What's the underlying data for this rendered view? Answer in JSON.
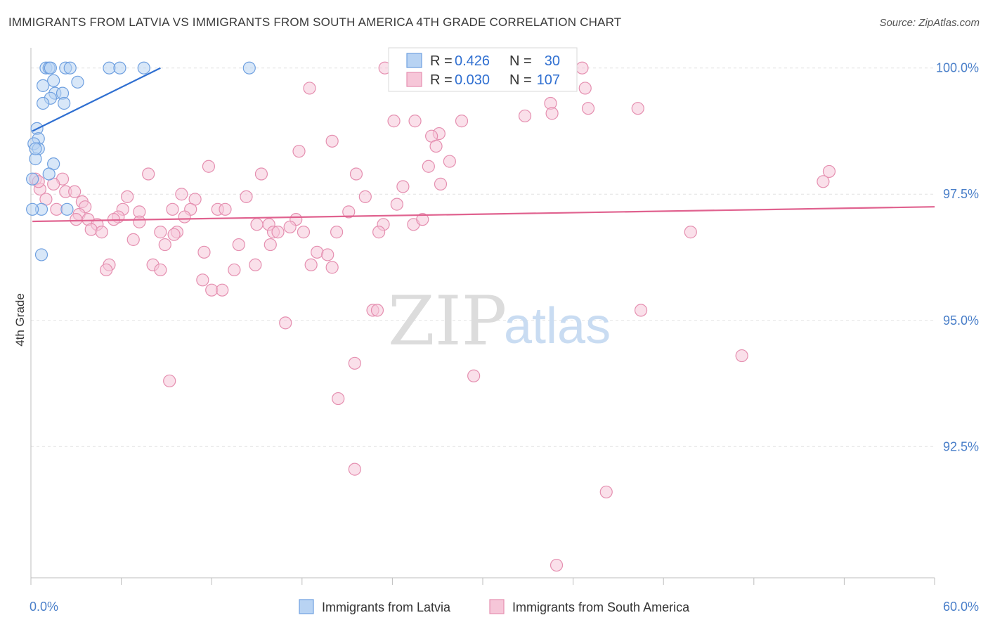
{
  "header": {
    "title": "IMMIGRANTS FROM LATVIA VS IMMIGRANTS FROM SOUTH AMERICA 4TH GRADE CORRELATION CHART",
    "source": "Source: ZipAtlas.com"
  },
  "watermark": {
    "zip": "ZIP",
    "atlas": "atlas"
  },
  "chart_data": {
    "type": "scatter",
    "title": "IMMIGRANTS FROM LATVIA VS IMMIGRANTS FROM SOUTH AMERICA 4TH GRADE CORRELATION CHART",
    "xlabel": "",
    "ylabel": "4th Grade",
    "xlim": [
      0,
      60
    ],
    "ylim": [
      89.9,
      100.4
    ],
    "x_tick_labels": [
      "0.0%",
      "60.0%"
    ],
    "y_ticks": [
      100.0,
      97.5,
      95.0,
      92.5
    ],
    "y_tick_labels": [
      "100.0%",
      "97.5%",
      "95.0%",
      "92.5%"
    ],
    "grid": true,
    "legend_position": "bottom-center",
    "stats_box": {
      "r_label": "R =",
      "n_label": "N =",
      "rows": [
        {
          "series": "Immigrants from Latvia",
          "r": "0.426",
          "n": "30"
        },
        {
          "series": "Immigrants from South America",
          "r": "0.030",
          "n": "107"
        }
      ]
    },
    "series": [
      {
        "name": "Immigrants from Latvia",
        "color": "#6fa0e0",
        "fill": "#b8d3f3",
        "trend": {
          "x": [
            0.1,
            8.6
          ],
          "y": [
            98.75,
            100.0
          ]
        },
        "points": [
          {
            "x": 1.0,
            "y": 100.0
          },
          {
            "x": 1.2,
            "y": 100.0
          },
          {
            "x": 1.3,
            "y": 100.0
          },
          {
            "x": 2.3,
            "y": 100.0
          },
          {
            "x": 2.6,
            "y": 100.0
          },
          {
            "x": 5.2,
            "y": 100.0
          },
          {
            "x": 5.9,
            "y": 100.0
          },
          {
            "x": 7.5,
            "y": 100.0
          },
          {
            "x": 14.5,
            "y": 100.0
          },
          {
            "x": 1.5,
            "y": 99.75
          },
          {
            "x": 3.1,
            "y": 99.72
          },
          {
            "x": 0.8,
            "y": 99.65
          },
          {
            "x": 1.6,
            "y": 99.5
          },
          {
            "x": 2.1,
            "y": 99.5
          },
          {
            "x": 1.3,
            "y": 99.4
          },
          {
            "x": 0.8,
            "y": 99.3
          },
          {
            "x": 2.2,
            "y": 99.3
          },
          {
            "x": 0.4,
            "y": 98.8
          },
          {
            "x": 0.5,
            "y": 98.6
          },
          {
            "x": 0.2,
            "y": 98.5
          },
          {
            "x": 0.5,
            "y": 98.4
          },
          {
            "x": 0.3,
            "y": 98.2
          },
          {
            "x": 1.5,
            "y": 98.1
          },
          {
            "x": 1.2,
            "y": 97.9
          },
          {
            "x": 0.1,
            "y": 97.8
          },
          {
            "x": 0.7,
            "y": 97.2
          },
          {
            "x": 2.4,
            "y": 97.2
          },
          {
            "x": 0.1,
            "y": 97.2
          },
          {
            "x": 0.7,
            "y": 96.3
          },
          {
            "x": 0.3,
            "y": 98.4
          }
        ]
      },
      {
        "name": "Immigrants from South America",
        "color": "#e58fb0",
        "fill": "#f6c6d8",
        "trend": {
          "x": [
            0.1,
            60.0
          ],
          "y": [
            96.96,
            97.25
          ]
        },
        "points": [
          {
            "x": 23.5,
            "y": 100.0
          },
          {
            "x": 36.6,
            "y": 100.0
          },
          {
            "x": 18.5,
            "y": 99.6
          },
          {
            "x": 36.8,
            "y": 99.6
          },
          {
            "x": 34.5,
            "y": 99.3
          },
          {
            "x": 37.0,
            "y": 99.2
          },
          {
            "x": 40.3,
            "y": 99.2
          },
          {
            "x": 32.8,
            "y": 99.05
          },
          {
            "x": 34.6,
            "y": 99.1
          },
          {
            "x": 24.1,
            "y": 98.95
          },
          {
            "x": 25.5,
            "y": 98.95
          },
          {
            "x": 28.6,
            "y": 98.95
          },
          {
            "x": 27.1,
            "y": 98.7
          },
          {
            "x": 26.6,
            "y": 98.65
          },
          {
            "x": 20.0,
            "y": 98.55
          },
          {
            "x": 26.9,
            "y": 98.45
          },
          {
            "x": 17.8,
            "y": 98.35
          },
          {
            "x": 27.8,
            "y": 98.15
          },
          {
            "x": 26.4,
            "y": 98.05
          },
          {
            "x": 11.8,
            "y": 98.05
          },
          {
            "x": 7.8,
            "y": 97.9
          },
          {
            "x": 15.3,
            "y": 97.9
          },
          {
            "x": 21.6,
            "y": 97.9
          },
          {
            "x": 53.0,
            "y": 97.95
          },
          {
            "x": 52.6,
            "y": 97.75
          },
          {
            "x": 0.3,
            "y": 97.8
          },
          {
            "x": 2.1,
            "y": 97.8
          },
          {
            "x": 1.5,
            "y": 97.7
          },
          {
            "x": 24.7,
            "y": 97.65
          },
          {
            "x": 27.2,
            "y": 97.7
          },
          {
            "x": 2.3,
            "y": 97.55
          },
          {
            "x": 2.9,
            "y": 97.55
          },
          {
            "x": 10.0,
            "y": 97.5
          },
          {
            "x": 6.4,
            "y": 97.45
          },
          {
            "x": 14.3,
            "y": 97.45
          },
          {
            "x": 22.2,
            "y": 97.45
          },
          {
            "x": 10.9,
            "y": 97.4
          },
          {
            "x": 3.4,
            "y": 97.35
          },
          {
            "x": 24.3,
            "y": 97.3
          },
          {
            "x": 3.6,
            "y": 97.25
          },
          {
            "x": 6.1,
            "y": 97.2
          },
          {
            "x": 9.4,
            "y": 97.2
          },
          {
            "x": 12.4,
            "y": 97.2
          },
          {
            "x": 12.9,
            "y": 97.2
          },
          {
            "x": 10.6,
            "y": 97.2
          },
          {
            "x": 1.7,
            "y": 97.2
          },
          {
            "x": 7.2,
            "y": 97.15
          },
          {
            "x": 21.1,
            "y": 97.15
          },
          {
            "x": 3.2,
            "y": 97.1
          },
          {
            "x": 5.8,
            "y": 97.05
          },
          {
            "x": 10.2,
            "y": 97.05
          },
          {
            "x": 3.8,
            "y": 97.0
          },
          {
            "x": 5.5,
            "y": 97.0
          },
          {
            "x": 17.6,
            "y": 97.0
          },
          {
            "x": 7.2,
            "y": 96.95
          },
          {
            "x": 15.0,
            "y": 96.9
          },
          {
            "x": 15.8,
            "y": 96.9
          },
          {
            "x": 25.4,
            "y": 96.9
          },
          {
            "x": 23.4,
            "y": 96.9
          },
          {
            "x": 4.4,
            "y": 96.9
          },
          {
            "x": 17.2,
            "y": 96.85
          },
          {
            "x": 4.0,
            "y": 96.8
          },
          {
            "x": 4.7,
            "y": 96.75
          },
          {
            "x": 8.6,
            "y": 96.75
          },
          {
            "x": 9.7,
            "y": 96.75
          },
          {
            "x": 16.1,
            "y": 96.75
          },
          {
            "x": 16.4,
            "y": 96.75
          },
          {
            "x": 18.1,
            "y": 96.75
          },
          {
            "x": 20.3,
            "y": 96.75
          },
          {
            "x": 23.1,
            "y": 96.75
          },
          {
            "x": 43.8,
            "y": 96.75
          },
          {
            "x": 6.8,
            "y": 96.6
          },
          {
            "x": 8.9,
            "y": 96.5
          },
          {
            "x": 13.8,
            "y": 96.5
          },
          {
            "x": 15.9,
            "y": 96.5
          },
          {
            "x": 11.5,
            "y": 96.35
          },
          {
            "x": 19.0,
            "y": 96.35
          },
          {
            "x": 19.7,
            "y": 96.3
          },
          {
            "x": 5.2,
            "y": 96.1
          },
          {
            "x": 8.1,
            "y": 96.1
          },
          {
            "x": 14.9,
            "y": 96.1
          },
          {
            "x": 18.6,
            "y": 96.1
          },
          {
            "x": 20.0,
            "y": 96.05
          },
          {
            "x": 5.0,
            "y": 96.0
          },
          {
            "x": 8.6,
            "y": 96.0
          },
          {
            "x": 13.5,
            "y": 96.0
          },
          {
            "x": 11.4,
            "y": 95.8
          },
          {
            "x": 12.0,
            "y": 95.6
          },
          {
            "x": 12.7,
            "y": 95.6
          },
          {
            "x": 22.7,
            "y": 95.2
          },
          {
            "x": 23.0,
            "y": 95.2
          },
          {
            "x": 40.5,
            "y": 95.2
          },
          {
            "x": 16.9,
            "y": 94.95
          },
          {
            "x": 21.5,
            "y": 94.15
          },
          {
            "x": 29.4,
            "y": 93.9
          },
          {
            "x": 9.2,
            "y": 93.8
          },
          {
            "x": 47.2,
            "y": 94.3
          },
          {
            "x": 20.4,
            "y": 93.45
          },
          {
            "x": 21.5,
            "y": 92.05
          },
          {
            "x": 38.2,
            "y": 91.6
          },
          {
            "x": 34.9,
            "y": 90.15
          },
          {
            "x": 3.0,
            "y": 97.0
          },
          {
            "x": 0.6,
            "y": 97.6
          },
          {
            "x": 1.0,
            "y": 97.4
          },
          {
            "x": 0.5,
            "y": 97.75
          },
          {
            "x": 26.0,
            "y": 97.0
          },
          {
            "x": 9.5,
            "y": 96.7
          }
        ]
      }
    ]
  }
}
